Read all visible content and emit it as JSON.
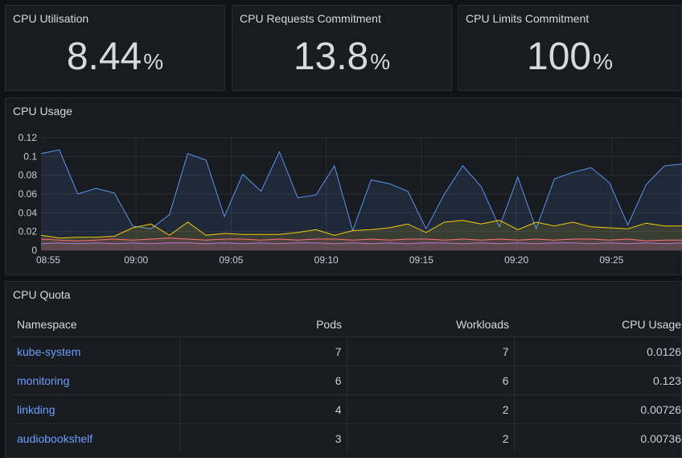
{
  "stats": [
    {
      "title": "CPU Utilisation",
      "value": "8.44",
      "unit": "%"
    },
    {
      "title": "CPU Requests Commitment",
      "value": "13.8",
      "unit": "%"
    },
    {
      "title": "CPU Limits Commitment",
      "value": "100",
      "unit": "%"
    }
  ],
  "usage_panel": {
    "title": "CPU Usage"
  },
  "quota_panel": {
    "title": "CPU Quota",
    "columns": [
      "Namespace",
      "Pods",
      "Workloads",
      "CPU Usage"
    ],
    "rows": [
      {
        "namespace": "kube-system",
        "pods": "7",
        "workloads": "7",
        "cpu": "0.0126"
      },
      {
        "namespace": "monitoring",
        "pods": "6",
        "workloads": "6",
        "cpu": "0.123"
      },
      {
        "namespace": "linkding",
        "pods": "4",
        "workloads": "2",
        "cpu": "0.00726"
      },
      {
        "namespace": "audiobookshelf",
        "pods": "3",
        "workloads": "2",
        "cpu": "0.00736"
      }
    ]
  },
  "chart_data": {
    "type": "area",
    "y_ticks": [
      "0",
      "0.02",
      "0.04",
      "0.06",
      "0.08",
      "0.1",
      "0.12"
    ],
    "ylim": [
      0,
      0.12
    ],
    "x_ticks": [
      "08:55",
      "09:00",
      "09:05",
      "09:10",
      "09:15",
      "09:20",
      "09:25"
    ],
    "grid": true,
    "colors": [
      "#5794f2",
      "#f2cc0c",
      "#ff7383",
      "#b877d9"
    ],
    "series": [
      {
        "values": [
          0.103,
          0.107,
          0.06,
          0.066,
          0.061,
          0.026,
          0.023,
          0.038,
          0.103,
          0.096,
          0.036,
          0.081,
          0.063,
          0.105,
          0.056,
          0.059,
          0.09,
          0.021,
          0.075,
          0.071,
          0.063,
          0.023,
          0.06,
          0.09,
          0.068,
          0.025,
          0.078,
          0.023,
          0.076,
          0.083,
          0.088,
          0.072,
          0.027,
          0.07,
          0.09,
          0.092
        ]
      },
      {
        "values": [
          0.016,
          0.013,
          0.014,
          0.014,
          0.015,
          0.024,
          0.028,
          0.016,
          0.03,
          0.016,
          0.018,
          0.017,
          0.017,
          0.017,
          0.019,
          0.022,
          0.016,
          0.021,
          0.022,
          0.024,
          0.028,
          0.019,
          0.03,
          0.032,
          0.028,
          0.032,
          0.022,
          0.03,
          0.026,
          0.03,
          0.025,
          0.024,
          0.023,
          0.029,
          0.026,
          0.026
        ]
      },
      {
        "values": [
          0.012,
          0.011,
          0.01,
          0.011,
          0.012,
          0.011,
          0.012,
          0.013,
          0.012,
          0.011,
          0.012,
          0.012,
          0.011,
          0.012,
          0.011,
          0.012,
          0.012,
          0.011,
          0.012,
          0.011,
          0.012,
          0.012,
          0.011,
          0.012,
          0.011,
          0.012,
          0.011,
          0.012,
          0.011,
          0.012,
          0.012,
          0.011,
          0.012,
          0.01,
          0.011,
          0.011
        ]
      },
      {
        "values": [
          0.007,
          0.008,
          0.007,
          0.008,
          0.007,
          0.008,
          0.007,
          0.008,
          0.008,
          0.007,
          0.008,
          0.007,
          0.008,
          0.007,
          0.008,
          0.008,
          0.007,
          0.008,
          0.007,
          0.008,
          0.007,
          0.008,
          0.008,
          0.007,
          0.008,
          0.007,
          0.008,
          0.007,
          0.008,
          0.008,
          0.007,
          0.008,
          0.007,
          0.008,
          0.007,
          0.008
        ]
      }
    ]
  }
}
